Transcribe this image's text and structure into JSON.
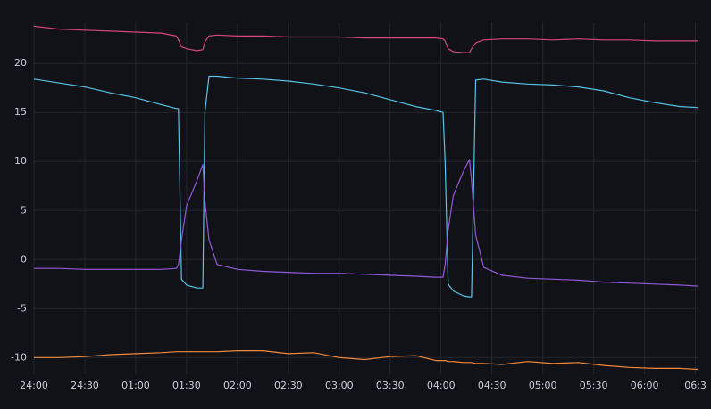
{
  "chart_data": {
    "type": "line",
    "x": [
      0,
      0.25,
      0.5,
      0.75,
      1.0,
      1.25,
      1.4,
      1.42,
      1.45,
      1.5,
      1.6,
      1.66,
      1.68,
      1.72,
      1.8,
      2.0,
      2.25,
      2.5,
      2.75,
      3.0,
      3.25,
      3.5,
      3.75,
      3.95,
      4.02,
      4.04,
      4.07,
      4.12,
      4.22,
      4.28,
      4.3,
      4.34,
      4.42,
      4.6,
      4.85,
      5.1,
      5.35,
      5.6,
      5.85,
      6.1,
      6.35,
      6.52
    ],
    "series": [
      {
        "color": "#d6457a",
        "values": [
          23.8,
          23.5,
          23.4,
          23.3,
          23.2,
          23.1,
          22.8,
          22.4,
          21.7,
          21.5,
          21.3,
          21.4,
          22.2,
          22.8,
          22.9,
          22.8,
          22.8,
          22.7,
          22.7,
          22.7,
          22.6,
          22.6,
          22.6,
          22.6,
          22.5,
          22.3,
          21.5,
          21.2,
          21.1,
          21.1,
          21.5,
          22.1,
          22.4,
          22.5,
          22.5,
          22.4,
          22.5,
          22.4,
          22.4,
          22.3,
          22.3,
          22.3
        ]
      },
      {
        "color": "#56c2e6",
        "values": [
          18.4,
          18.0,
          17.6,
          17.0,
          16.5,
          15.8,
          15.4,
          15.4,
          -2.0,
          -2.6,
          -2.9,
          -2.9,
          15.0,
          18.7,
          18.7,
          18.5,
          18.4,
          18.2,
          17.9,
          17.5,
          17.0,
          16.3,
          15.6,
          15.2,
          15.0,
          10.0,
          -2.5,
          -3.2,
          -3.7,
          -3.8,
          -3.8,
          18.3,
          18.4,
          18.1,
          17.9,
          17.8,
          17.6,
          17.2,
          16.5,
          16.0,
          15.6,
          15.5
        ]
      },
      {
        "color": "#9358d8",
        "values": [
          -0.9,
          -0.9,
          -1.0,
          -1.0,
          -1.0,
          -1.0,
          -0.9,
          -0.5,
          2.0,
          5.5,
          8.0,
          9.7,
          6.0,
          2.0,
          -0.5,
          -1.0,
          -1.2,
          -1.3,
          -1.4,
          -1.4,
          -1.5,
          -1.6,
          -1.7,
          -1.8,
          -1.8,
          -0.5,
          3.0,
          6.5,
          9.0,
          10.2,
          8.0,
          2.5,
          -0.8,
          -1.6,
          -1.9,
          -2.0,
          -2.1,
          -2.3,
          -2.4,
          -2.5,
          -2.6,
          -2.7
        ]
      },
      {
        "color": "#f2893c",
        "values": [
          -10.0,
          -10.0,
          -9.9,
          -9.7,
          -9.6,
          -9.5,
          -9.4,
          -9.4,
          -9.4,
          -9.4,
          -9.4,
          -9.4,
          -9.4,
          -9.4,
          -9.4,
          -9.3,
          -9.3,
          -9.6,
          -9.5,
          -10.0,
          -10.2,
          -9.9,
          -9.8,
          -10.3,
          -10.3,
          -10.3,
          -10.4,
          -10.4,
          -10.5,
          -10.5,
          -10.5,
          -10.6,
          -10.6,
          -10.7,
          -10.4,
          -10.6,
          -10.5,
          -10.8,
          -11.0,
          -11.1,
          -11.1,
          -11.2
        ]
      }
    ],
    "xlim": [
      0,
      6.53
    ],
    "xticks": [
      {
        "value": 0,
        "label": "24:00"
      },
      {
        "value": 0.5,
        "label": "24:30"
      },
      {
        "value": 1,
        "label": "01:00"
      },
      {
        "value": 1.5,
        "label": "01:30"
      },
      {
        "value": 2,
        "label": "02:00"
      },
      {
        "value": 2.5,
        "label": "02:30"
      },
      {
        "value": 3,
        "label": "03:00"
      },
      {
        "value": 3.5,
        "label": "03:30"
      },
      {
        "value": 4,
        "label": "04:00"
      },
      {
        "value": 4.5,
        "label": "04:30"
      },
      {
        "value": 5,
        "label": "05:00"
      },
      {
        "value": 5.5,
        "label": "05:30"
      },
      {
        "value": 6,
        "label": "06:00"
      },
      {
        "value": 6.5,
        "label": "06:3"
      }
    ],
    "ylim": [
      -11.7,
      24.2
    ],
    "yticks": [
      -10,
      -5,
      0,
      5,
      10,
      15,
      20
    ],
    "grid": true
  }
}
